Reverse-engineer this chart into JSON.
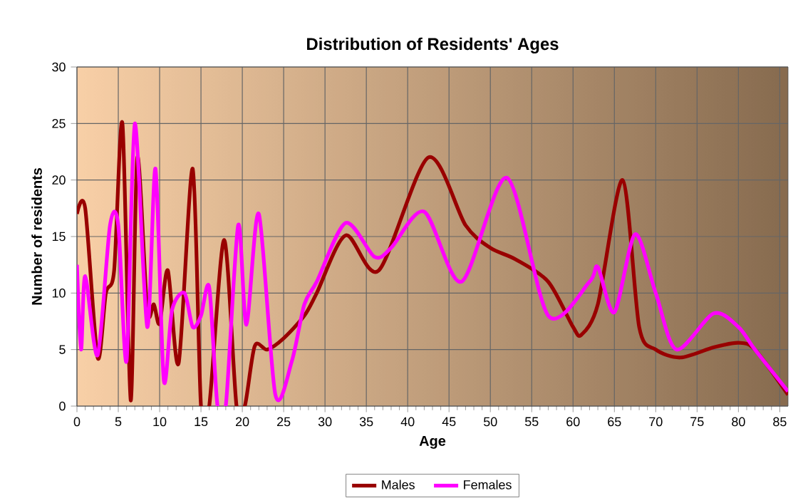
{
  "chart_data": {
    "type": "line",
    "title": "Distribution of Residents' Ages",
    "xlabel": "Age",
    "ylabel": "Number of residents",
    "xlim": [
      0,
      86
    ],
    "ylim": [
      0,
      30
    ],
    "xticks": [
      0,
      5,
      10,
      15,
      20,
      25,
      30,
      35,
      40,
      45,
      50,
      55,
      60,
      65,
      70,
      75,
      80,
      85
    ],
    "yticks": [
      0,
      5,
      10,
      15,
      20,
      25,
      30
    ],
    "grid": true,
    "legend": "bottom",
    "marker": "none",
    "line_style": "solid",
    "series": [
      {
        "name": "Males",
        "color": "#990000",
        "x": [
          0,
          1,
          2.5,
          3.5,
          4.5,
          5.5,
          6.5,
          7.3,
          8.5,
          9.3,
          10,
          11,
          12.3,
          14,
          15,
          16,
          17.8,
          19.3,
          20.3,
          21.5,
          23,
          25,
          27.5,
          29,
          32.5,
          36.5,
          42.5,
          47,
          50,
          53,
          57,
          60,
          61,
          63,
          66,
          68,
          70,
          73,
          77,
          80,
          82,
          86
        ],
        "values": [
          17,
          17.5,
          4.3,
          10,
          12,
          25,
          0.5,
          22,
          8.5,
          9,
          7.3,
          12,
          3.8,
          21,
          0,
          0,
          14.7,
          0,
          0,
          5.3,
          5,
          6,
          8,
          10,
          15.1,
          12,
          22,
          16,
          14,
          13,
          11,
          7,
          6.3,
          9,
          20,
          7,
          5,
          4.3,
          5.2,
          5.6,
          5,
          1
        ]
      },
      {
        "name": "Females",
        "color": "#ff00ff",
        "x": [
          0,
          0.5,
          1,
          2.5,
          4,
          5,
          6,
          7,
          8.5,
          9.5,
          10.5,
          11.5,
          13,
          14,
          15,
          16,
          17,
          18,
          19.5,
          20.5,
          22,
          24,
          26,
          27.5,
          29,
          32.5,
          36,
          38,
          42,
          46.5,
          52,
          57,
          62,
          63,
          65,
          67.5,
          70,
          72.5,
          77,
          80,
          82,
          86
        ],
        "values": [
          12.5,
          5,
          11.5,
          4.5,
          16,
          16,
          4,
          25,
          7,
          21,
          2.3,
          8.5,
          10,
          7,
          8,
          10.5,
          0,
          0,
          16,
          7.2,
          17,
          1,
          4,
          9,
          11,
          16.2,
          13.2,
          14,
          17.2,
          11,
          20.2,
          8,
          11,
          12.3,
          8.3,
          15.2,
          10,
          5,
          8.2,
          7,
          5,
          1.3
        ]
      }
    ]
  }
}
